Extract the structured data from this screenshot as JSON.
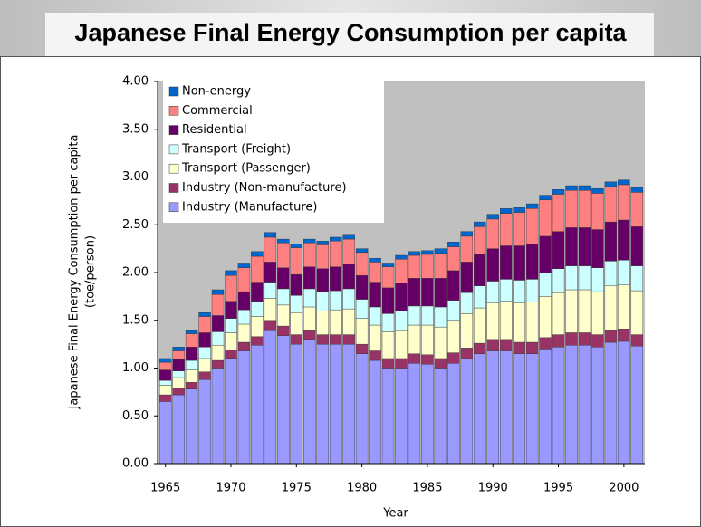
{
  "chart_data": {
    "type": "stacked_bar",
    "title": "Japanese Final Energy Consumption per capita",
    "x_label": "Year",
    "y_label": [
      "Japanese Final Energy Consumption per capita",
      "(toe/person)"
    ],
    "x": [
      1965,
      1966,
      1967,
      1968,
      1969,
      1970,
      1971,
      1972,
      1973,
      1974,
      1975,
      1976,
      1977,
      1978,
      1979,
      1980,
      1981,
      1982,
      1983,
      1984,
      1985,
      1986,
      1987,
      1988,
      1989,
      1990,
      1991,
      1992,
      1993,
      1994,
      1995,
      1996,
      1997,
      1998,
      1999,
      2000,
      2001
    ],
    "xlim": [
      1964.4,
      2001.6
    ],
    "xticks": [
      1965,
      1970,
      1975,
      1980,
      1985,
      1990,
      1995,
      2000
    ],
    "ylim": [
      0,
      4
    ],
    "yticks": [
      {
        "value": 0,
        "label": "0.00"
      },
      {
        "value": 0.5,
        "label": "0.50"
      },
      {
        "value": 1,
        "label": "1.00"
      },
      {
        "value": 1.5,
        "label": "1.50"
      },
      {
        "value": 2,
        "label": "2.00"
      },
      {
        "value": 2.5,
        "label": "2.50"
      },
      {
        "value": 3,
        "label": "3.00"
      },
      {
        "value": 3.5,
        "label": "3.50"
      },
      {
        "value": 4,
        "label": "4.00"
      }
    ],
    "grid": false,
    "legend": "upper left",
    "series": [
      {
        "name": "Industry (Manufacture)",
        "color": "#9999ff",
        "values": [
          0.65,
          0.72,
          0.78,
          0.88,
          1.0,
          1.1,
          1.18,
          1.24,
          1.4,
          1.34,
          1.25,
          1.3,
          1.25,
          1.25,
          1.25,
          1.15,
          1.08,
          1.0,
          1.0,
          1.05,
          1.04,
          1.0,
          1.05,
          1.1,
          1.15,
          1.18,
          1.18,
          1.15,
          1.15,
          1.2,
          1.22,
          1.24,
          1.24,
          1.22,
          1.27,
          1.28,
          1.23
        ]
      },
      {
        "name": "Industry (Non-manufacture)",
        "color": "#993366",
        "values": [
          0.07,
          0.07,
          0.07,
          0.08,
          0.08,
          0.09,
          0.09,
          0.09,
          0.1,
          0.1,
          0.1,
          0.1,
          0.1,
          0.1,
          0.1,
          0.1,
          0.1,
          0.1,
          0.1,
          0.1,
          0.1,
          0.1,
          0.11,
          0.11,
          0.11,
          0.12,
          0.12,
          0.12,
          0.12,
          0.12,
          0.13,
          0.13,
          0.13,
          0.13,
          0.13,
          0.13,
          0.12
        ]
      },
      {
        "name": "Transport (Passenger)",
        "color": "#ffffcc",
        "values": [
          0.1,
          0.11,
          0.13,
          0.14,
          0.16,
          0.18,
          0.19,
          0.21,
          0.23,
          0.22,
          0.23,
          0.24,
          0.25,
          0.26,
          0.27,
          0.27,
          0.27,
          0.28,
          0.3,
          0.3,
          0.31,
          0.33,
          0.34,
          0.36,
          0.37,
          0.38,
          0.4,
          0.41,
          0.42,
          0.43,
          0.44,
          0.45,
          0.45,
          0.45,
          0.46,
          0.46,
          0.46
        ]
      },
      {
        "name": "Transport (Freight)",
        "color": "#ccffff",
        "values": [
          0.05,
          0.07,
          0.1,
          0.12,
          0.14,
          0.15,
          0.15,
          0.16,
          0.17,
          0.17,
          0.18,
          0.19,
          0.2,
          0.2,
          0.21,
          0.2,
          0.19,
          0.19,
          0.2,
          0.2,
          0.2,
          0.21,
          0.21,
          0.22,
          0.23,
          0.23,
          0.23,
          0.24,
          0.24,
          0.25,
          0.25,
          0.25,
          0.25,
          0.25,
          0.26,
          0.26,
          0.26
        ]
      },
      {
        "name": "Residential",
        "color": "#660066",
        "values": [
          0.11,
          0.12,
          0.14,
          0.15,
          0.17,
          0.18,
          0.19,
          0.2,
          0.21,
          0.22,
          0.22,
          0.23,
          0.24,
          0.25,
          0.26,
          0.25,
          0.26,
          0.27,
          0.29,
          0.29,
          0.29,
          0.3,
          0.31,
          0.32,
          0.33,
          0.34,
          0.35,
          0.36,
          0.37,
          0.38,
          0.39,
          0.4,
          0.4,
          0.4,
          0.41,
          0.42,
          0.41
        ]
      },
      {
        "name": "Commercial",
        "color": "#ff8080",
        "values": [
          0.08,
          0.09,
          0.14,
          0.17,
          0.22,
          0.27,
          0.25,
          0.27,
          0.26,
          0.26,
          0.28,
          0.25,
          0.25,
          0.27,
          0.26,
          0.24,
          0.21,
          0.22,
          0.25,
          0.24,
          0.25,
          0.26,
          0.25,
          0.27,
          0.29,
          0.31,
          0.34,
          0.35,
          0.37,
          0.38,
          0.39,
          0.39,
          0.39,
          0.38,
          0.37,
          0.37,
          0.36
        ]
      },
      {
        "name": "Non-energy",
        "color": "#0066cc",
        "values": [
          0.04,
          0.04,
          0.04,
          0.04,
          0.05,
          0.05,
          0.05,
          0.05,
          0.05,
          0.04,
          0.04,
          0.04,
          0.04,
          0.04,
          0.05,
          0.04,
          0.04,
          0.04,
          0.04,
          0.04,
          0.04,
          0.05,
          0.05,
          0.05,
          0.05,
          0.05,
          0.05,
          0.05,
          0.05,
          0.05,
          0.05,
          0.05,
          0.05,
          0.05,
          0.05,
          0.05,
          0.05
        ]
      }
    ]
  }
}
